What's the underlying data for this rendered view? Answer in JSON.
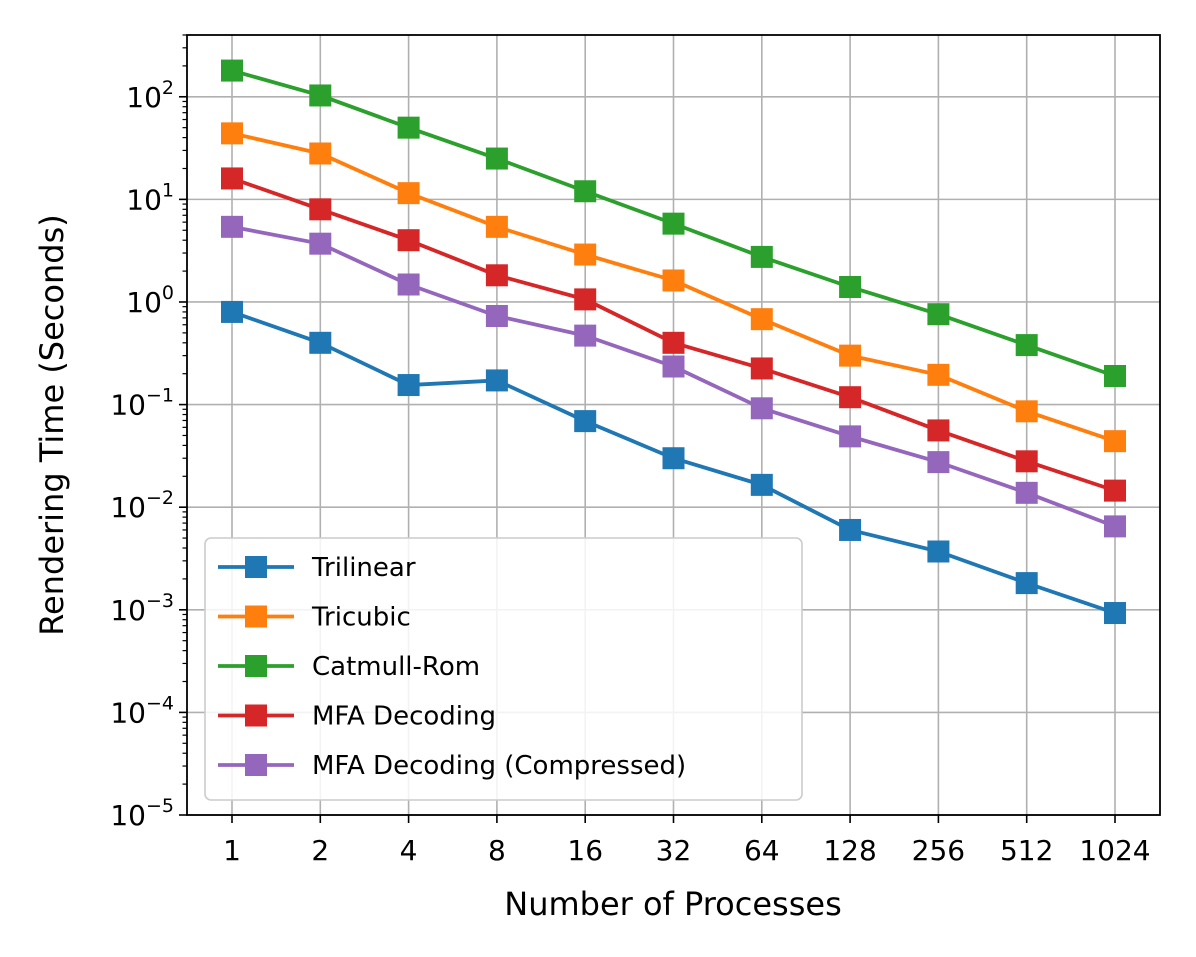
{
  "chart_data": {
    "type": "line",
    "title": "",
    "xlabel": "Number of Processes",
    "ylabel": "Rendering Time (Seconds)",
    "x": [
      1,
      2,
      4,
      8,
      16,
      32,
      64,
      128,
      256,
      512,
      1024
    ],
    "x_tick_labels": [
      "1",
      "2",
      "4",
      "8",
      "16",
      "32",
      "64",
      "128",
      "256",
      "512",
      "1024"
    ],
    "y_scale": "log",
    "ylim": [
      1e-05,
      400
    ],
    "y_ticks": [
      {
        "value": 1e-05,
        "exp": "−5"
      },
      {
        "value": 0.0001,
        "exp": "−4"
      },
      {
        "value": 0.001,
        "exp": "−3"
      },
      {
        "value": 0.01,
        "exp": "−2"
      },
      {
        "value": 0.1,
        "exp": "−1"
      },
      {
        "value": 1,
        "exp": "0"
      },
      {
        "value": 10,
        "exp": "1"
      },
      {
        "value": 100,
        "exp": "2"
      }
    ],
    "y_tick_base": "10",
    "grid": true,
    "legend_position": "lower-left",
    "series": [
      {
        "name": "Trilinear",
        "color": "#1f77b4",
        "marker": "square",
        "values": [
          0.8,
          0.4,
          0.155,
          0.172,
          0.069,
          0.03,
          0.0165,
          0.006,
          0.0037,
          0.00182,
          0.00093
        ]
      },
      {
        "name": "Tricubic",
        "color": "#ff7f0e",
        "marker": "square",
        "values": [
          44,
          28,
          11.5,
          5.4,
          2.9,
          1.62,
          0.68,
          0.3,
          0.195,
          0.086,
          0.044
        ]
      },
      {
        "name": "Catmull-Rom",
        "color": "#2ca02c",
        "marker": "square",
        "values": [
          180,
          103,
          50,
          25,
          12,
          5.8,
          2.75,
          1.4,
          0.76,
          0.38,
          0.19
        ]
      },
      {
        "name": "MFA Decoding",
        "color": "#d62728",
        "marker": "square",
        "values": [
          16,
          8.0,
          4.0,
          1.82,
          1.06,
          0.4,
          0.225,
          0.118,
          0.056,
          0.028,
          0.0145
        ]
      },
      {
        "name": "MFA Decoding (Compressed)",
        "color": "#9467bd",
        "marker": "square",
        "values": [
          5.4,
          3.7,
          1.48,
          0.73,
          0.47,
          0.235,
          0.092,
          0.049,
          0.0275,
          0.0138,
          0.0065
        ]
      }
    ]
  }
}
